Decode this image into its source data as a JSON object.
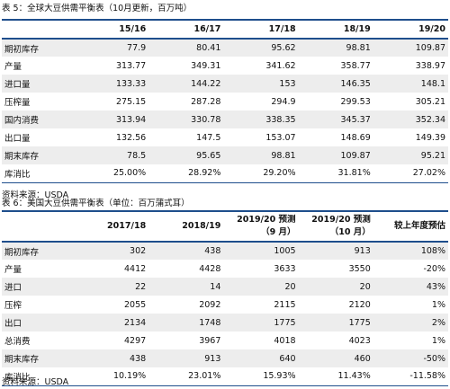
{
  "table1": {
    "caption": "表 5：全球大豆供需平衡表（10月更新，百万吨）",
    "headers": [
      "15/16",
      "16/17",
      "17/18",
      "18/19",
      "19/20"
    ],
    "rows": [
      {
        "label": "期初库存",
        "values": [
          "77.9",
          "80.41",
          "95.62",
          "98.81",
          "109.87"
        ]
      },
      {
        "label": "产量",
        "values": [
          "313.77",
          "349.31",
          "341.62",
          "358.77",
          "338.97"
        ]
      },
      {
        "label": "进口量",
        "values": [
          "133.33",
          "144.22",
          "153",
          "146.35",
          "148.1"
        ]
      },
      {
        "label": "压榨量",
        "values": [
          "275.15",
          "287.28",
          "294.9",
          "299.53",
          "305.21"
        ]
      },
      {
        "label": "国内消费",
        "values": [
          "313.94",
          "330.78",
          "338.35",
          "345.37",
          "352.34"
        ]
      },
      {
        "label": "出口量",
        "values": [
          "132.56",
          "147.5",
          "153.07",
          "148.69",
          "149.39"
        ]
      },
      {
        "label": "期末库存",
        "values": [
          "78.5",
          "95.65",
          "98.81",
          "109.87",
          "95.21"
        ]
      },
      {
        "label": "库消比",
        "values": [
          "25.00%",
          "28.92%",
          "29.20%",
          "31.81%",
          "27.02%"
        ]
      }
    ],
    "source": "资料来源：USDA"
  },
  "table2": {
    "caption": "表 6：美国大豆供需平衡表（单位：百万蒲式耳）",
    "headers": [
      {
        "line1": "2017/18",
        "line2": ""
      },
      {
        "line1": "2018/19",
        "line2": ""
      },
      {
        "line1": "2019/20 预测",
        "line2": "（9 月）"
      },
      {
        "line1": "2019/20 预测",
        "line2": "（10 月）"
      },
      {
        "line1": "较上年度预估",
        "line2": ""
      }
    ],
    "rows": [
      {
        "label": "期初库存",
        "values": [
          "302",
          "438",
          "1005",
          "913",
          "108%"
        ]
      },
      {
        "label": "产量",
        "values": [
          "4412",
          "4428",
          "3633",
          "3550",
          "-20%"
        ]
      },
      {
        "label": "进口",
        "values": [
          "22",
          "14",
          "20",
          "20",
          "43%"
        ]
      },
      {
        "label": "压榨",
        "values": [
          "2055",
          "2092",
          "2115",
          "2120",
          "1%"
        ]
      },
      {
        "label": "出口",
        "values": [
          "2134",
          "1748",
          "1775",
          "1775",
          "2%"
        ]
      },
      {
        "label": "总消费",
        "values": [
          "4297",
          "3967",
          "4018",
          "4023",
          "1%"
        ]
      },
      {
        "label": "期末库存",
        "values": [
          "438",
          "913",
          "640",
          "460",
          "-50%"
        ]
      },
      {
        "label": "库消比",
        "values": [
          "10.19%",
          "23.01%",
          "15.93%",
          "11.43%",
          "-11.58%"
        ]
      }
    ],
    "source": "资料来源：USDA"
  }
}
